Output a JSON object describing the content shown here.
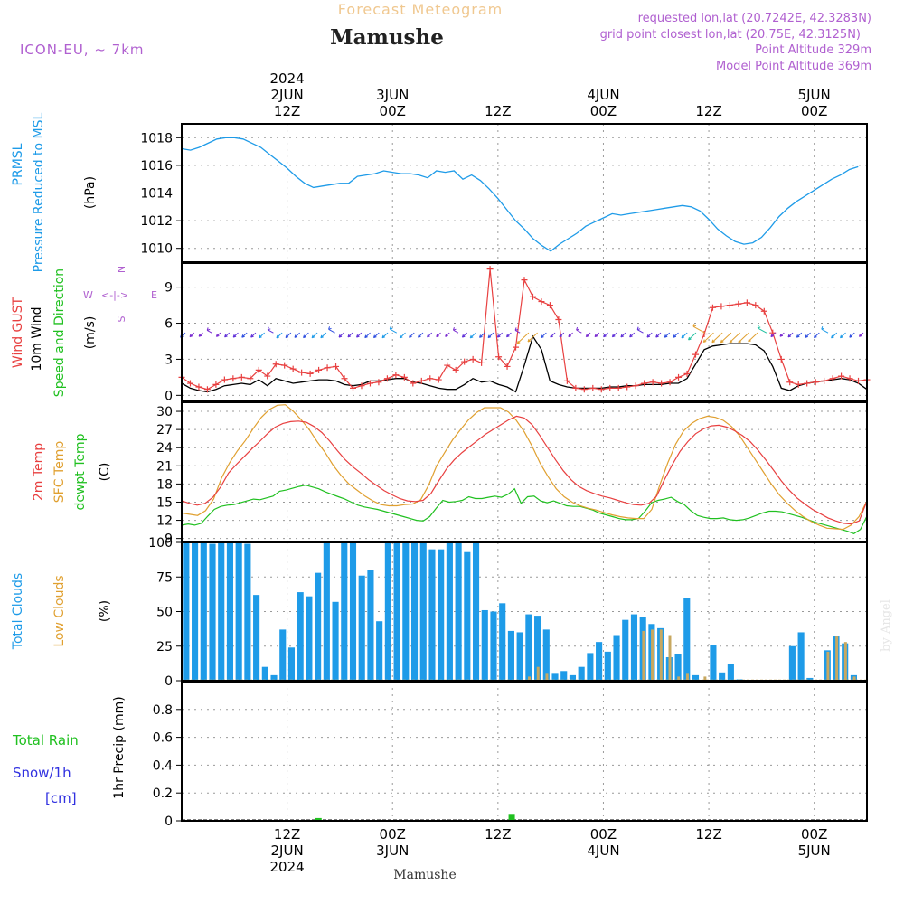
{
  "header": {
    "product": "Forecast Meteogram",
    "location": "Mamushe",
    "model": "ICON-EU, ~ 7km",
    "requested": "requested lon,lat (20.7242E, 42.3283N)",
    "gridpoint": "grid point closest lon,lat (20.75E, 42.3125N)",
    "point_alt": "Point Altitude 329m",
    "model_alt": "Model Point Altitude 369m",
    "footer_name": "Mamushe",
    "credit": "by Angel"
  },
  "time_axis": {
    "top_labels": [
      {
        "h": 12,
        "lines": [
          "2024",
          "2JUN",
          "12Z"
        ]
      },
      {
        "h": 24,
        "lines": [
          "3JUN",
          "00Z"
        ]
      },
      {
        "h": 36,
        "lines": [
          "12Z"
        ]
      },
      {
        "h": 48,
        "lines": [
          "4JUN",
          "00Z"
        ]
      },
      {
        "h": 60,
        "lines": [
          "12Z"
        ]
      },
      {
        "h": 72,
        "lines": [
          "5JUN",
          "00Z"
        ]
      }
    ],
    "bottom_labels": [
      {
        "h": 12,
        "lines": [
          "12Z",
          "2JUN",
          "2024"
        ]
      },
      {
        "h": 24,
        "lines": [
          "00Z",
          "3JUN"
        ]
      },
      {
        "h": 36,
        "lines": [
          "12Z"
        ]
      },
      {
        "h": 48,
        "lines": [
          "00Z",
          "4JUN"
        ]
      },
      {
        "h": 60,
        "lines": [
          "12Z"
        ]
      },
      {
        "h": 72,
        "lines": [
          "00Z",
          "5JUN"
        ]
      }
    ]
  },
  "panel_labels": {
    "pressure": {
      "name": "PRMSL",
      "desc": "Pressure Reduced to MSL",
      "unit": "(hPa)"
    },
    "wind": {
      "gust": "Wind GUST",
      "wind10": "10m Wind",
      "dir": "Speed and Direction",
      "unit": "(m/s)",
      "compass": {
        "n": "N",
        "s": "S",
        "w": "W",
        "e": "E",
        "ns": "^\n|\nv",
        "we": "<-|->"
      }
    },
    "temp": {
      "t2m": "2m Temp",
      "sfc": "SFC Temp",
      "dew": "dewpt Temp",
      "unit": "(C)"
    },
    "clouds": {
      "total": "Total Clouds",
      "low": "Low Clouds",
      "unit": "(%)"
    },
    "precip": {
      "rain": "Total  Rain",
      "snow": "Snow/1h",
      "snow_unit": "[cm]",
      "title": "1hr Precip (mm)"
    }
  },
  "colors": {
    "pressure": "#1e9be8",
    "gust": "#e84040",
    "wind": "#000000",
    "t2m": "#e84040",
    "sfc": "#e0a030",
    "dew": "#20c020",
    "total_clouds": "#1e9be8",
    "low_clouds": "#c8a860",
    "rain": "#20c020",
    "snow": "#3030e0",
    "header_purple": "#b060d0",
    "product_title": "#f0c890"
  },
  "chart_data": [
    {
      "type": "line",
      "name": "pressure",
      "ylim": [
        1009,
        1019
      ],
      "yticks": [
        1010,
        1012,
        1014,
        1016,
        1018
      ],
      "series": [
        {
          "name": "PRMSL",
          "x": [
            0,
            1,
            2,
            3,
            4,
            5,
            6,
            7,
            8,
            9,
            10,
            11,
            12,
            13,
            14,
            15,
            16,
            17,
            18,
            19,
            20,
            21,
            22,
            23,
            24,
            25,
            26,
            27,
            28,
            29,
            30,
            31,
            32,
            33,
            34,
            35,
            36,
            37,
            38,
            39,
            40,
            41,
            42,
            43,
            44,
            45,
            46,
            47,
            48,
            49,
            50,
            51,
            52,
            53,
            54,
            55,
            56,
            57,
            58,
            59,
            60,
            61,
            62,
            63,
            64,
            65,
            66,
            67,
            68,
            69,
            70,
            71,
            72,
            73,
            74,
            75,
            76,
            77
          ],
          "values": [
            1017.2,
            1017.1,
            1017.3,
            1017.6,
            1017.9,
            1018.0,
            1018.0,
            1017.9,
            1017.6,
            1017.3,
            1016.8,
            1016.3,
            1015.8,
            1015.2,
            1014.7,
            1014.4,
            1014.5,
            1014.6,
            1014.7,
            1014.7,
            1015.2,
            1015.3,
            1015.4,
            1015.6,
            1015.5,
            1015.4,
            1015.4,
            1015.3,
            1015.1,
            1015.6,
            1015.5,
            1015.6,
            1015.0,
            1015.3,
            1014.9,
            1014.3,
            1013.6,
            1012.8,
            1012.0,
            1011.4,
            1010.7,
            1010.2,
            1009.8,
            1010.3,
            1010.7,
            1011.1,
            1011.6,
            1011.9,
            1012.2,
            1012.5,
            1012.4,
            1012.5,
            1012.6,
            1012.7,
            1012.8,
            1012.9,
            1013.0,
            1013.1,
            1013.0,
            1012.7,
            1012.1,
            1011.4,
            1010.9,
            1010.5,
            1010.3,
            1010.4,
            1010.8,
            1011.5,
            1012.3,
            1012.9,
            1013.4,
            1013.8,
            1014.2,
            1014.6,
            1015.0,
            1015.3,
            1015.7,
            1015.9
          ]
        }
      ]
    },
    {
      "type": "line",
      "name": "wind",
      "ylim": [
        -0.5,
        11
      ],
      "yticks": [
        0,
        3,
        6,
        9
      ],
      "series": [
        {
          "name": "Wind GUST",
          "values": [
            1.5,
            1.0,
            0.7,
            0.5,
            0.9,
            1.3,
            1.4,
            1.5,
            1.4,
            2.1,
            1.6,
            2.6,
            2.5,
            2.2,
            1.9,
            1.8,
            2.1,
            2.3,
            2.4,
            1.4,
            0.6,
            0.8,
            1.0,
            1.1,
            1.4,
            1.7,
            1.5,
            1.0,
            1.2,
            1.4,
            1.3,
            2.5,
            2.1,
            2.8,
            3.0,
            2.7,
            10.5,
            3.2,
            2.4,
            4.0,
            9.6,
            8.2,
            7.8,
            7.5,
            6.3,
            1.2,
            0.6,
            0.5,
            0.6,
            0.5,
            0.6,
            0.6,
            0.7,
            0.8,
            1.0,
            1.1,
            1.0,
            1.1,
            1.5,
            1.8,
            3.4,
            5.1,
            7.3,
            7.4,
            7.5,
            7.6,
            7.7,
            7.5,
            7.0,
            5.2,
            3.0,
            1.1,
            0.9,
            1.0,
            1.1,
            1.2,
            1.4,
            1.6,
            1.4,
            1.2,
            1.3
          ]
        },
        {
          "name": "10m Wind",
          "values": [
            1.0,
            0.6,
            0.4,
            0.3,
            0.5,
            0.8,
            0.9,
            1.0,
            0.9,
            1.3,
            0.8,
            1.4,
            1.2,
            1.0,
            1.1,
            1.2,
            1.3,
            1.3,
            1.2,
            0.9,
            0.8,
            0.9,
            1.2,
            1.2,
            1.3,
            1.4,
            1.4,
            1.1,
            1.0,
            0.8,
            0.6,
            0.5,
            0.5,
            0.9,
            1.4,
            1.1,
            1.2,
            0.9,
            0.7,
            0.3,
            2.5,
            4.9,
            3.8,
            1.2,
            0.9,
            0.7,
            0.6,
            0.6,
            0.6,
            0.6,
            0.7,
            0.7,
            0.8,
            0.8,
            0.9,
            0.9,
            0.9,
            1.0,
            1.0,
            1.4,
            2.6,
            3.8,
            4.1,
            4.2,
            4.3,
            4.3,
            4.3,
            4.2,
            3.7,
            2.4,
            0.6,
            0.4,
            0.8,
            1.0,
            1.1,
            1.2,
            1.3,
            1.4,
            1.3,
            1.0,
            0.5
          ]
        }
      ]
    },
    {
      "type": "line",
      "name": "temperature",
      "ylim": [
        8.5,
        31.5
      ],
      "yticks": [
        9,
        12,
        15,
        18,
        21,
        24,
        27,
        30
      ],
      "series": [
        {
          "name": "2m Temp",
          "values": [
            15.2,
            14.8,
            14.5,
            14.8,
            15.8,
            17.5,
            19.8,
            21.2,
            22.5,
            23.8,
            25.0,
            26.3,
            27.4,
            28.0,
            28.3,
            28.4,
            28.2,
            27.5,
            26.5,
            25.1,
            23.5,
            22.0,
            20.8,
            19.8,
            18.7,
            17.8,
            16.9,
            16.2,
            15.6,
            15.2,
            15.1,
            15.3,
            16.4,
            18.5,
            20.5,
            22.0,
            23.2,
            24.2,
            25.2,
            26.2,
            27.0,
            27.8,
            28.6,
            29.2,
            28.9,
            27.8,
            26.0,
            24.0,
            22.0,
            20.2,
            18.7,
            17.6,
            16.9,
            16.4,
            16.0,
            15.7,
            15.3,
            14.9,
            14.6,
            14.5,
            14.8,
            16.0,
            18.7,
            21.2,
            23.4,
            25.0,
            26.3,
            27.1,
            27.6,
            27.7,
            27.4,
            26.8,
            26.0,
            25.0,
            23.6,
            22.0,
            20.3,
            18.5,
            17.0,
            15.7,
            14.7,
            13.8,
            13.1,
            12.4,
            11.9,
            11.5,
            11.4,
            11.9,
            15.2
          ]
        },
        {
          "name": "SFC Temp",
          "values": [
            13.2,
            13.0,
            12.8,
            13.6,
            15.5,
            19.0,
            21.5,
            23.5,
            25.2,
            27.2,
            29.0,
            30.3,
            31.0,
            31.1,
            30.0,
            28.6,
            27.0,
            25.0,
            23.2,
            21.1,
            19.4,
            18.0,
            17.0,
            16.0,
            15.2,
            14.6,
            14.4,
            14.4,
            14.6,
            14.7,
            15.4,
            17.8,
            21.0,
            23.2,
            25.3,
            27.0,
            28.6,
            29.8,
            30.6,
            30.6,
            30.6,
            29.9,
            28.5,
            26.6,
            24.2,
            21.4,
            19.2,
            17.2,
            15.9,
            15.0,
            14.4,
            14.0,
            13.7,
            13.3,
            12.9,
            12.6,
            12.4,
            12.3,
            12.3,
            13.8,
            17.8,
            21.5,
            24.6,
            26.8,
            28.0,
            28.8,
            29.2,
            29.0,
            28.5,
            27.5,
            26.0,
            24.0,
            22.0,
            20.0,
            18.0,
            16.2,
            14.8,
            13.6,
            12.6,
            11.8,
            11.2,
            10.7,
            10.6,
            10.5,
            11.2,
            12.6,
            15.2
          ]
        },
        {
          "name": "dewpt Temp",
          "values": [
            11.2,
            11.4,
            11.2,
            11.5,
            12.7,
            13.8,
            14.3,
            14.5,
            14.6,
            14.9,
            15.2,
            15.5,
            15.4,
            15.7,
            16.0,
            16.8,
            17.0,
            17.3,
            17.6,
            17.8,
            17.5,
            17.2,
            16.7,
            16.3,
            15.9,
            15.5,
            15.0,
            14.5,
            14.2,
            14.0,
            13.8,
            13.5,
            13.2,
            12.9,
            12.6,
            12.3,
            12.0,
            11.9,
            12.6,
            14.0,
            15.3,
            15.0,
            15.1,
            15.3,
            15.9,
            15.6,
            15.6,
            15.8,
            16.0,
            15.8,
            16.3,
            17.2,
            14.8,
            15.9,
            16.0,
            15.2,
            14.9,
            15.2,
            14.8,
            14.4,
            14.3,
            14.3,
            14.0,
            13.7,
            13.2,
            12.9,
            12.6,
            12.3,
            12.1,
            12.1,
            12.3,
            13.5,
            14.9,
            15.3,
            15.5,
            15.8,
            15.1,
            14.6,
            13.6,
            12.8,
            12.5,
            12.3,
            12.3,
            12.4,
            12.1,
            12.0,
            12.1,
            12.4,
            12.8,
            13.2,
            13.5,
            13.5,
            13.4,
            13.1,
            12.8,
            12.5,
            12.1,
            11.7,
            11.4,
            11.1,
            10.8,
            10.5,
            10.2,
            9.8,
            10.5,
            12.7
          ]
        }
      ]
    },
    {
      "type": "bar",
      "name": "clouds",
      "ylim": [
        0,
        100
      ],
      "yticks": [
        0,
        25,
        50,
        75,
        100
      ],
      "series": [
        {
          "name": "Total Clouds",
          "values": [
            100,
            100,
            100,
            99,
            100,
            100,
            100,
            99,
            62,
            10,
            4,
            37,
            24,
            64,
            61,
            78,
            100,
            57,
            100,
            100,
            76,
            80,
            43,
            100,
            100,
            100,
            100,
            100,
            95,
            95,
            100,
            100,
            93,
            100,
            51,
            50,
            56,
            36,
            35,
            48,
            47,
            37,
            5,
            7,
            4,
            10,
            20,
            28,
            21,
            33,
            44,
            48,
            46,
            41,
            38,
            17,
            19,
            60,
            4,
            0,
            26,
            6,
            12,
            1,
            0,
            0,
            0,
            0,
            0,
            25,
            35,
            2,
            0,
            22,
            32,
            27,
            4,
            0
          ]
        },
        {
          "name": "Low Clouds",
          "values": [
            0,
            0,
            0,
            0,
            0,
            0,
            0,
            0,
            0,
            0,
            0,
            0,
            0,
            0,
            0,
            0,
            0,
            0,
            0,
            0,
            0,
            0,
            0,
            0,
            0,
            0,
            0,
            0,
            0,
            0,
            0,
            0,
            0,
            0,
            0,
            0,
            0,
            0,
            0,
            3,
            10,
            5,
            0,
            0,
            0,
            0,
            0,
            0,
            0,
            0,
            0,
            0,
            36,
            37,
            37,
            33,
            3,
            5,
            0,
            3,
            0,
            0,
            0,
            0,
            0,
            0,
            0,
            0,
            0,
            0,
            0,
            0,
            0,
            21,
            32,
            28,
            3,
            0
          ]
        }
      ]
    },
    {
      "type": "bar",
      "name": "precip",
      "ylim": [
        0,
        1
      ],
      "yticks": [
        0,
        0.2,
        0.4,
        0.6,
        0.8
      ],
      "series": [
        {
          "name": "Total Rain",
          "values": [
            0,
            0,
            0,
            0,
            0,
            0,
            0,
            0,
            0,
            0,
            0,
            0,
            0,
            0,
            0,
            0,
            0,
            0,
            0,
            0,
            0,
            0,
            0,
            0,
            0,
            0,
            0,
            0,
            0,
            0,
            0,
            0,
            0,
            0,
            0,
            0,
            0,
            0,
            0,
            0,
            0,
            0,
            0,
            0,
            0,
            0,
            0,
            0,
            0,
            0,
            0,
            0,
            0,
            0,
            0,
            0,
            0,
            0,
            0,
            0,
            0,
            0,
            0,
            0,
            0,
            0,
            0,
            0,
            0,
            0,
            0,
            0,
            0,
            0,
            0,
            0,
            0,
            0
          ],
          "events": [
            {
              "h": 15,
              "v": 0.02
            },
            {
              "h": 37,
              "v": 0.05
            }
          ]
        }
      ]
    }
  ]
}
